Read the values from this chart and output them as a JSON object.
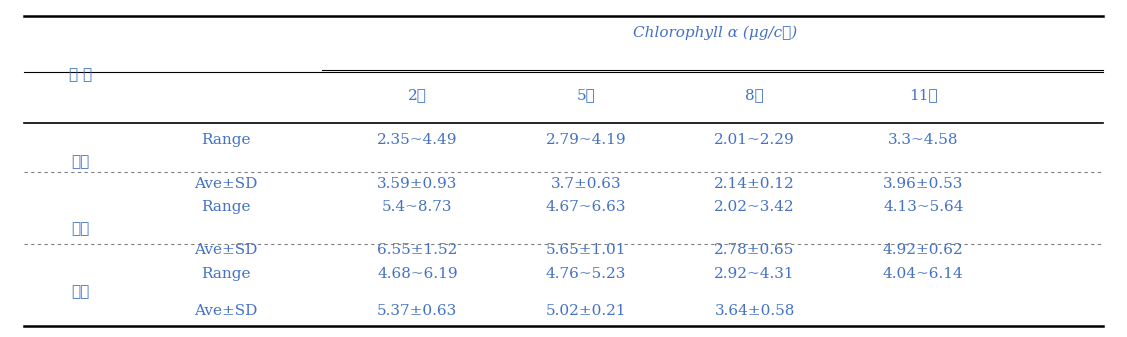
{
  "title": "Chlorophyll α (μg/c㎡)",
  "col_header_1": "구 분",
  "col_header_2": "",
  "months": [
    "2월",
    "5월",
    "8월",
    "11월"
  ],
  "sections": [
    {
      "label": "상부",
      "range": [
        "2.35~4.49",
        "2.79~4.19",
        "2.01~2.29",
        "3.3~4.58"
      ],
      "ave_sd": [
        "3.59±0.93",
        "3.7±0.63",
        "2.14±0.12",
        "3.96±0.53"
      ]
    },
    {
      "label": "중부",
      "range": [
        "5.4~8.73",
        "4.67~6.63",
        "2.02~3.42",
        "4.13~5.64"
      ],
      "ave_sd": [
        "6.55±1.52",
        "5.65±1.01",
        "2.78±0.65",
        "4.92±0.62"
      ]
    },
    {
      "label": "하부",
      "range": [
        "4.68~6.19",
        "4.76~5.23",
        "2.92~4.31",
        "4.04~6.14"
      ],
      "ave_sd": [
        "5.37±0.63",
        "5.02±0.21",
        "3.64±0.58",
        ""
      ]
    }
  ],
  "text_color": "#4472C4",
  "font_size": 11,
  "header_font_size": 11
}
